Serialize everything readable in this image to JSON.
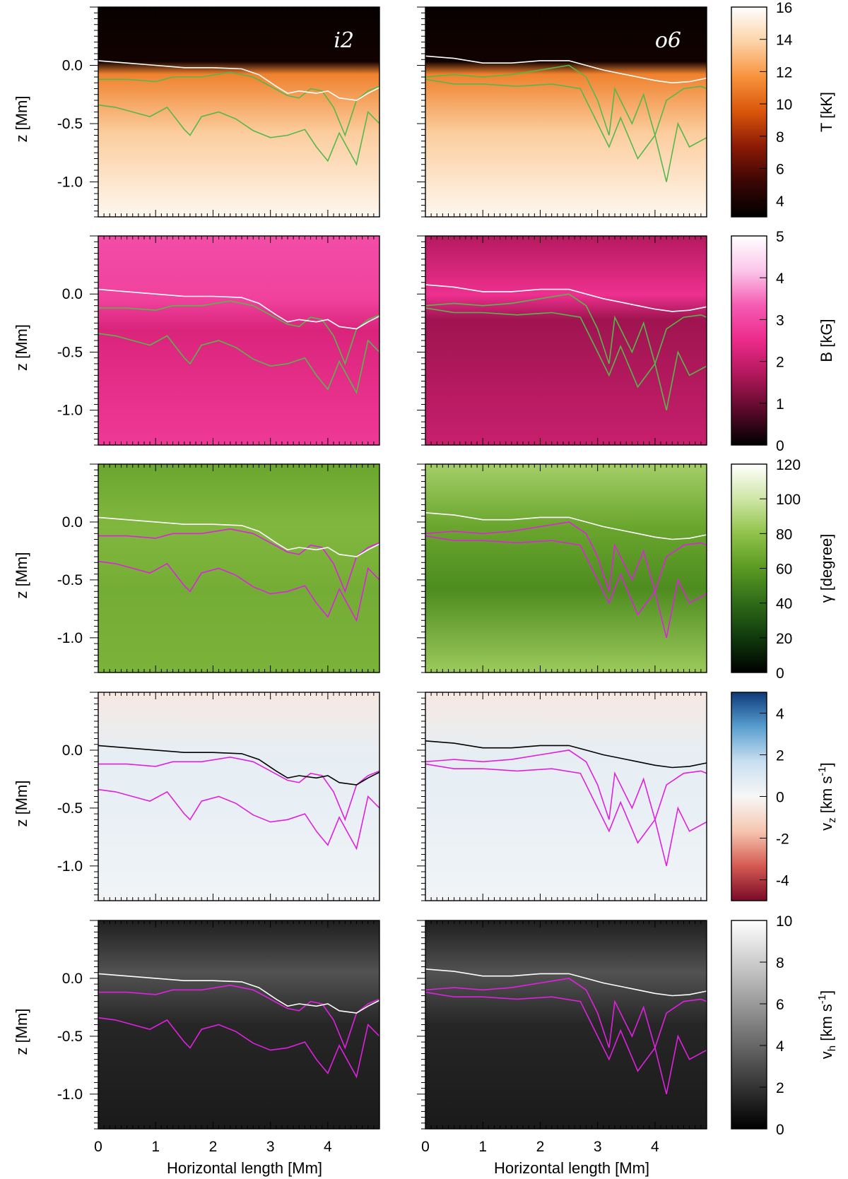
{
  "chart_data": {
    "type": "heatmap",
    "columns": [
      "i2",
      "o6"
    ],
    "xlabel": "Horizontal length [Mm]",
    "ylabel": "z [Mm]",
    "xlim": [
      0,
      4.9
    ],
    "ylim": [
      -1.3,
      0.5
    ],
    "x_ticks": [
      "0",
      "1",
      "2",
      "3",
      "4"
    ],
    "y_ticks": [
      "0.0",
      "-0.5",
      "-1.0"
    ],
    "rows": [
      {
        "quantity": "T",
        "colorbar_label": "T [kK]",
        "colormap": [
          "#000000",
          "#3a0604",
          "#8a1a06",
          "#d9550a",
          "#f7933c",
          "#fcd2a6",
          "#ffffff"
        ],
        "range": [
          3,
          16
        ],
        "ticks": [
          "4",
          "6",
          "8",
          "10",
          "12",
          "14",
          "16"
        ],
        "contour_color": "#55b84a",
        "tau_line_color": "#ffffff"
      },
      {
        "quantity": "B",
        "colorbar_label": "B [kG]",
        "colormap": [
          "#000000",
          "#5a0a2a",
          "#b0175a",
          "#ec2a8a",
          "#f55bb2",
          "#fbc6ea",
          "#ffffff"
        ],
        "range": [
          0,
          5
        ],
        "ticks": [
          "0",
          "1",
          "2",
          "3",
          "4",
          "5"
        ],
        "contour_color": "#55b84a",
        "tau_line_color": "#ffffff"
      },
      {
        "quantity": "gamma",
        "colorbar_label": "γ [degree]",
        "colormap": [
          "#000000",
          "#0f3a0c",
          "#2f6a18",
          "#5a9a22",
          "#90c24a",
          "#cfe6a6",
          "#ffffff"
        ],
        "range": [
          0,
          120
        ],
        "ticks": [
          "0",
          "20",
          "40",
          "60",
          "80",
          "100",
          "120"
        ],
        "contour_color": "#e020e0",
        "tau_line_color": "#ffffff"
      },
      {
        "quantity": "vz",
        "colorbar_label": "v_z [km s^-1]",
        "colormap": [
          "#7a0a28",
          "#d45a52",
          "#f6c6b0",
          "#f7f7f7",
          "#c9dff0",
          "#5a9fd0",
          "#0d3a7a"
        ],
        "range": [
          -5,
          5
        ],
        "ticks": [
          "-4",
          "-2",
          "0",
          "2",
          "4"
        ],
        "contour_color": "#e020e0",
        "tau_line_color": "#000000"
      },
      {
        "quantity": "vh",
        "colorbar_label": "v_h [km s^-1]",
        "colormap": [
          "#000000",
          "#404040",
          "#808080",
          "#c0c0c0",
          "#ffffff"
        ],
        "range": [
          0,
          10
        ],
        "ticks": [
          "0",
          "2",
          "4",
          "6",
          "8",
          "10"
        ],
        "contour_color": "#e020e0",
        "tau_line_color": "#ffffff"
      }
    ]
  }
}
